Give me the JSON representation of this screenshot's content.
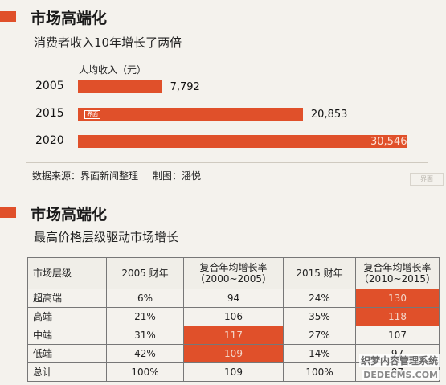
{
  "section1": {
    "title": "市场高端化",
    "subtitle": "消费者收入10年增长了两倍",
    "unit_label": "人均收入（元）",
    "bar_logo": "界面",
    "source": "数据来源：界面新闻整理",
    "credit": "制图：潘悦"
  },
  "section2": {
    "title": "市场高端化",
    "subtitle": "最高价格层级驱动市场增长"
  },
  "chart_data": [
    {
      "type": "bar",
      "orientation": "horizontal",
      "categories": [
        "2005",
        "2015",
        "2020"
      ],
      "values": [
        7792,
        20853,
        30546
      ],
      "value_labels": [
        "7,792",
        "20,853",
        "30,546"
      ],
      "ylabel": "人均收入（元）",
      "colors": {
        "bar": "#e0502a"
      }
    },
    {
      "type": "table",
      "columns": [
        "市场层级",
        "2005 财年",
        "复合年均增长率（2000~2005）",
        "2015 财年",
        "复合年均增长率（2010~2015）"
      ],
      "column_lines": [
        [
          "市场层级"
        ],
        [
          "2005 财年"
        ],
        [
          "复合年均增长率",
          "（2000~2005）"
        ],
        [
          "2015 财年"
        ],
        [
          "复合年均增长率",
          "（2010~2015）"
        ]
      ],
      "rows": [
        {
          "cells": [
            "超高端",
            "6%",
            "94",
            "24%",
            "130"
          ],
          "highlight": [
            4
          ]
        },
        {
          "cells": [
            "高端",
            "21%",
            "106",
            "35%",
            "118"
          ],
          "highlight": [
            4
          ]
        },
        {
          "cells": [
            "中端",
            "31%",
            "117",
            "27%",
            "107"
          ],
          "highlight": [
            2
          ]
        },
        {
          "cells": [
            "低端",
            "42%",
            "109",
            "14%",
            "97"
          ],
          "highlight": [
            2
          ]
        },
        {
          "cells": [
            "总计",
            "100%",
            "109",
            "100%",
            "97"
          ],
          "highlight": []
        }
      ],
      "colors": {
        "highlight": "#e0502a"
      }
    }
  ],
  "watermark": {
    "line1": "织梦内容管理系统",
    "line2": "DEDECMS.COM"
  }
}
